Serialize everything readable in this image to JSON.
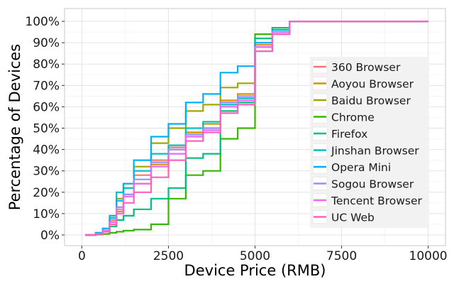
{
  "chart_data": {
    "type": "line",
    "title": "",
    "xlabel": "Device Price (RMB)",
    "ylabel": "Percentage of Devices",
    "xlim": [
      -500,
      10500
    ],
    "ylim": [
      -5,
      106
    ],
    "x_ticks": [
      0,
      2500,
      5000,
      7500,
      10000
    ],
    "x_tick_labels": [
      "0",
      "2500",
      "5000",
      "7500",
      "10000"
    ],
    "y_ticks": [
      0,
      10,
      20,
      30,
      40,
      50,
      60,
      70,
      80,
      90,
      100
    ],
    "y_tick_labels": [
      "0%",
      "10%",
      "20%",
      "30%",
      "40%",
      "50%",
      "60%",
      "70%",
      "80%",
      "90%",
      "100%"
    ],
    "grid": true,
    "legend_position": "right",
    "step": true,
    "series": [
      {
        "name": "360 Browser",
        "color": "#F8766D",
        "x": [
          100,
          400,
          600,
          800,
          1000,
          1200,
          1500,
          2000,
          2500,
          3000,
          3500,
          4000,
          4500,
          5000,
          5500,
          6000,
          10000
        ],
        "y": [
          0,
          0.5,
          2,
          7,
          13,
          22,
          28,
          35,
          41,
          48,
          50,
          62,
          64,
          88,
          95,
          100,
          100
        ]
      },
      {
        "name": "Aoyou Browser",
        "color": "#D89000",
        "x": [
          100,
          400,
          600,
          800,
          1000,
          1200,
          1500,
          2000,
          2500,
          3000,
          3500,
          4000,
          4500,
          5000,
          5500,
          6000,
          10000
        ],
        "y": [
          0,
          0.5,
          1.5,
          6,
          11,
          19,
          24,
          33,
          40,
          48,
          52,
          63,
          66,
          89,
          95,
          100,
          100
        ]
      },
      {
        "name": "Baidu Browser",
        "color": "#A3A500",
        "x": [
          100,
          400,
          600,
          800,
          1000,
          1200,
          1500,
          2000,
          2500,
          3000,
          3500,
          4000,
          4500,
          5000,
          5500,
          6000,
          10000
        ],
        "y": [
          0,
          1,
          3,
          9,
          17,
          24,
          32,
          43,
          50,
          58,
          61,
          69,
          71,
          90,
          96,
          100,
          100
        ]
      },
      {
        "name": "Chrome",
        "color": "#39B600",
        "x": [
          100,
          400,
          600,
          800,
          1000,
          1200,
          1500,
          2000,
          2500,
          3000,
          3500,
          4000,
          4500,
          5000,
          5500,
          6000,
          10000
        ],
        "y": [
          0,
          0.2,
          0.5,
          1,
          1.5,
          2,
          2.5,
          5,
          17,
          28,
          30,
          45,
          50,
          94,
          97,
          100,
          100
        ]
      },
      {
        "name": "Firefox",
        "color": "#00BF7D",
        "x": [
          100,
          400,
          600,
          800,
          1000,
          1200,
          1500,
          2000,
          2500,
          3000,
          3500,
          4000,
          4500,
          5000,
          5500,
          6000,
          10000
        ],
        "y": [
          0,
          0.5,
          1.5,
          4,
          7,
          9,
          12,
          17,
          22,
          36,
          38,
          58,
          62,
          92,
          97,
          100,
          100
        ]
      },
      {
        "name": "Jinshan Browser",
        "color": "#00BFC4",
        "x": [
          100,
          400,
          600,
          800,
          1000,
          1200,
          1500,
          2000,
          2500,
          3000,
          3500,
          4000,
          4500,
          5000,
          5500,
          6000,
          10000
        ],
        "y": [
          0,
          0.5,
          2,
          9,
          20,
          22,
          30,
          38,
          42,
          50,
          53,
          61,
          64,
          86,
          94,
          100,
          100
        ]
      },
      {
        "name": "Opera Mini",
        "color": "#00B0F6",
        "x": [
          100,
          400,
          600,
          800,
          1000,
          1200,
          1500,
          2000,
          2500,
          3000,
          3500,
          4000,
          4500,
          5000,
          5500,
          6000,
          10000
        ],
        "y": [
          0,
          1,
          3,
          8,
          16,
          24,
          35,
          46,
          52,
          62,
          66,
          76,
          79,
          90,
          96,
          100,
          100
        ]
      },
      {
        "name": "Sogou Browser",
        "color": "#9590FF",
        "x": [
          100,
          400,
          600,
          800,
          1000,
          1200,
          1500,
          2000,
          2500,
          3000,
          3500,
          4000,
          4500,
          5000,
          5500,
          6000,
          10000
        ],
        "y": [
          0,
          0.5,
          2,
          6,
          13,
          19,
          26,
          34,
          40,
          47,
          50,
          62,
          65,
          88,
          95,
          100,
          100
        ]
      },
      {
        "name": "Tencent Browser",
        "color": "#E76BF3",
        "x": [
          100,
          400,
          600,
          800,
          1000,
          1200,
          1500,
          2000,
          2500,
          3000,
          3500,
          4000,
          4500,
          5000,
          5500,
          6000,
          10000
        ],
        "y": [
          0,
          0.5,
          2,
          6,
          12,
          18,
          24,
          32,
          38,
          46,
          49,
          60,
          63,
          88,
          95,
          100,
          100
        ]
      },
      {
        "name": "UC Web",
        "color": "#FF62BC",
        "x": [
          100,
          400,
          600,
          800,
          1000,
          1200,
          1500,
          2000,
          2500,
          3000,
          3500,
          4000,
          4500,
          5000,
          5500,
          6000,
          10000
        ],
        "y": [
          0,
          0.5,
          1.5,
          5,
          10,
          15,
          20,
          27,
          35,
          44,
          48,
          57,
          61,
          86,
          94,
          100,
          100
        ]
      }
    ]
  }
}
